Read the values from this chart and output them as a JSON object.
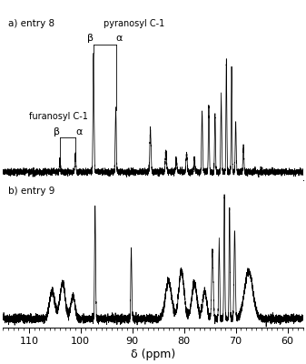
{
  "xlim": [
    57,
    115
  ],
  "xticks": [
    60,
    70,
    80,
    90,
    100,
    110
  ],
  "xlabel": "δ (ppm)",
  "panel_a_label": "a) entry 8",
  "panel_b_label": "b) entry 9",
  "annotation_pyranosyl": "pyranosyl C-1",
  "annotation_furanosyl": "furanosyl C-1",
  "beta": "β",
  "alpha": "α",
  "background_color": "#ffffff",
  "line_color": "#000000",
  "noise_a": 0.012,
  "noise_b": 0.015,
  "seed": 99
}
